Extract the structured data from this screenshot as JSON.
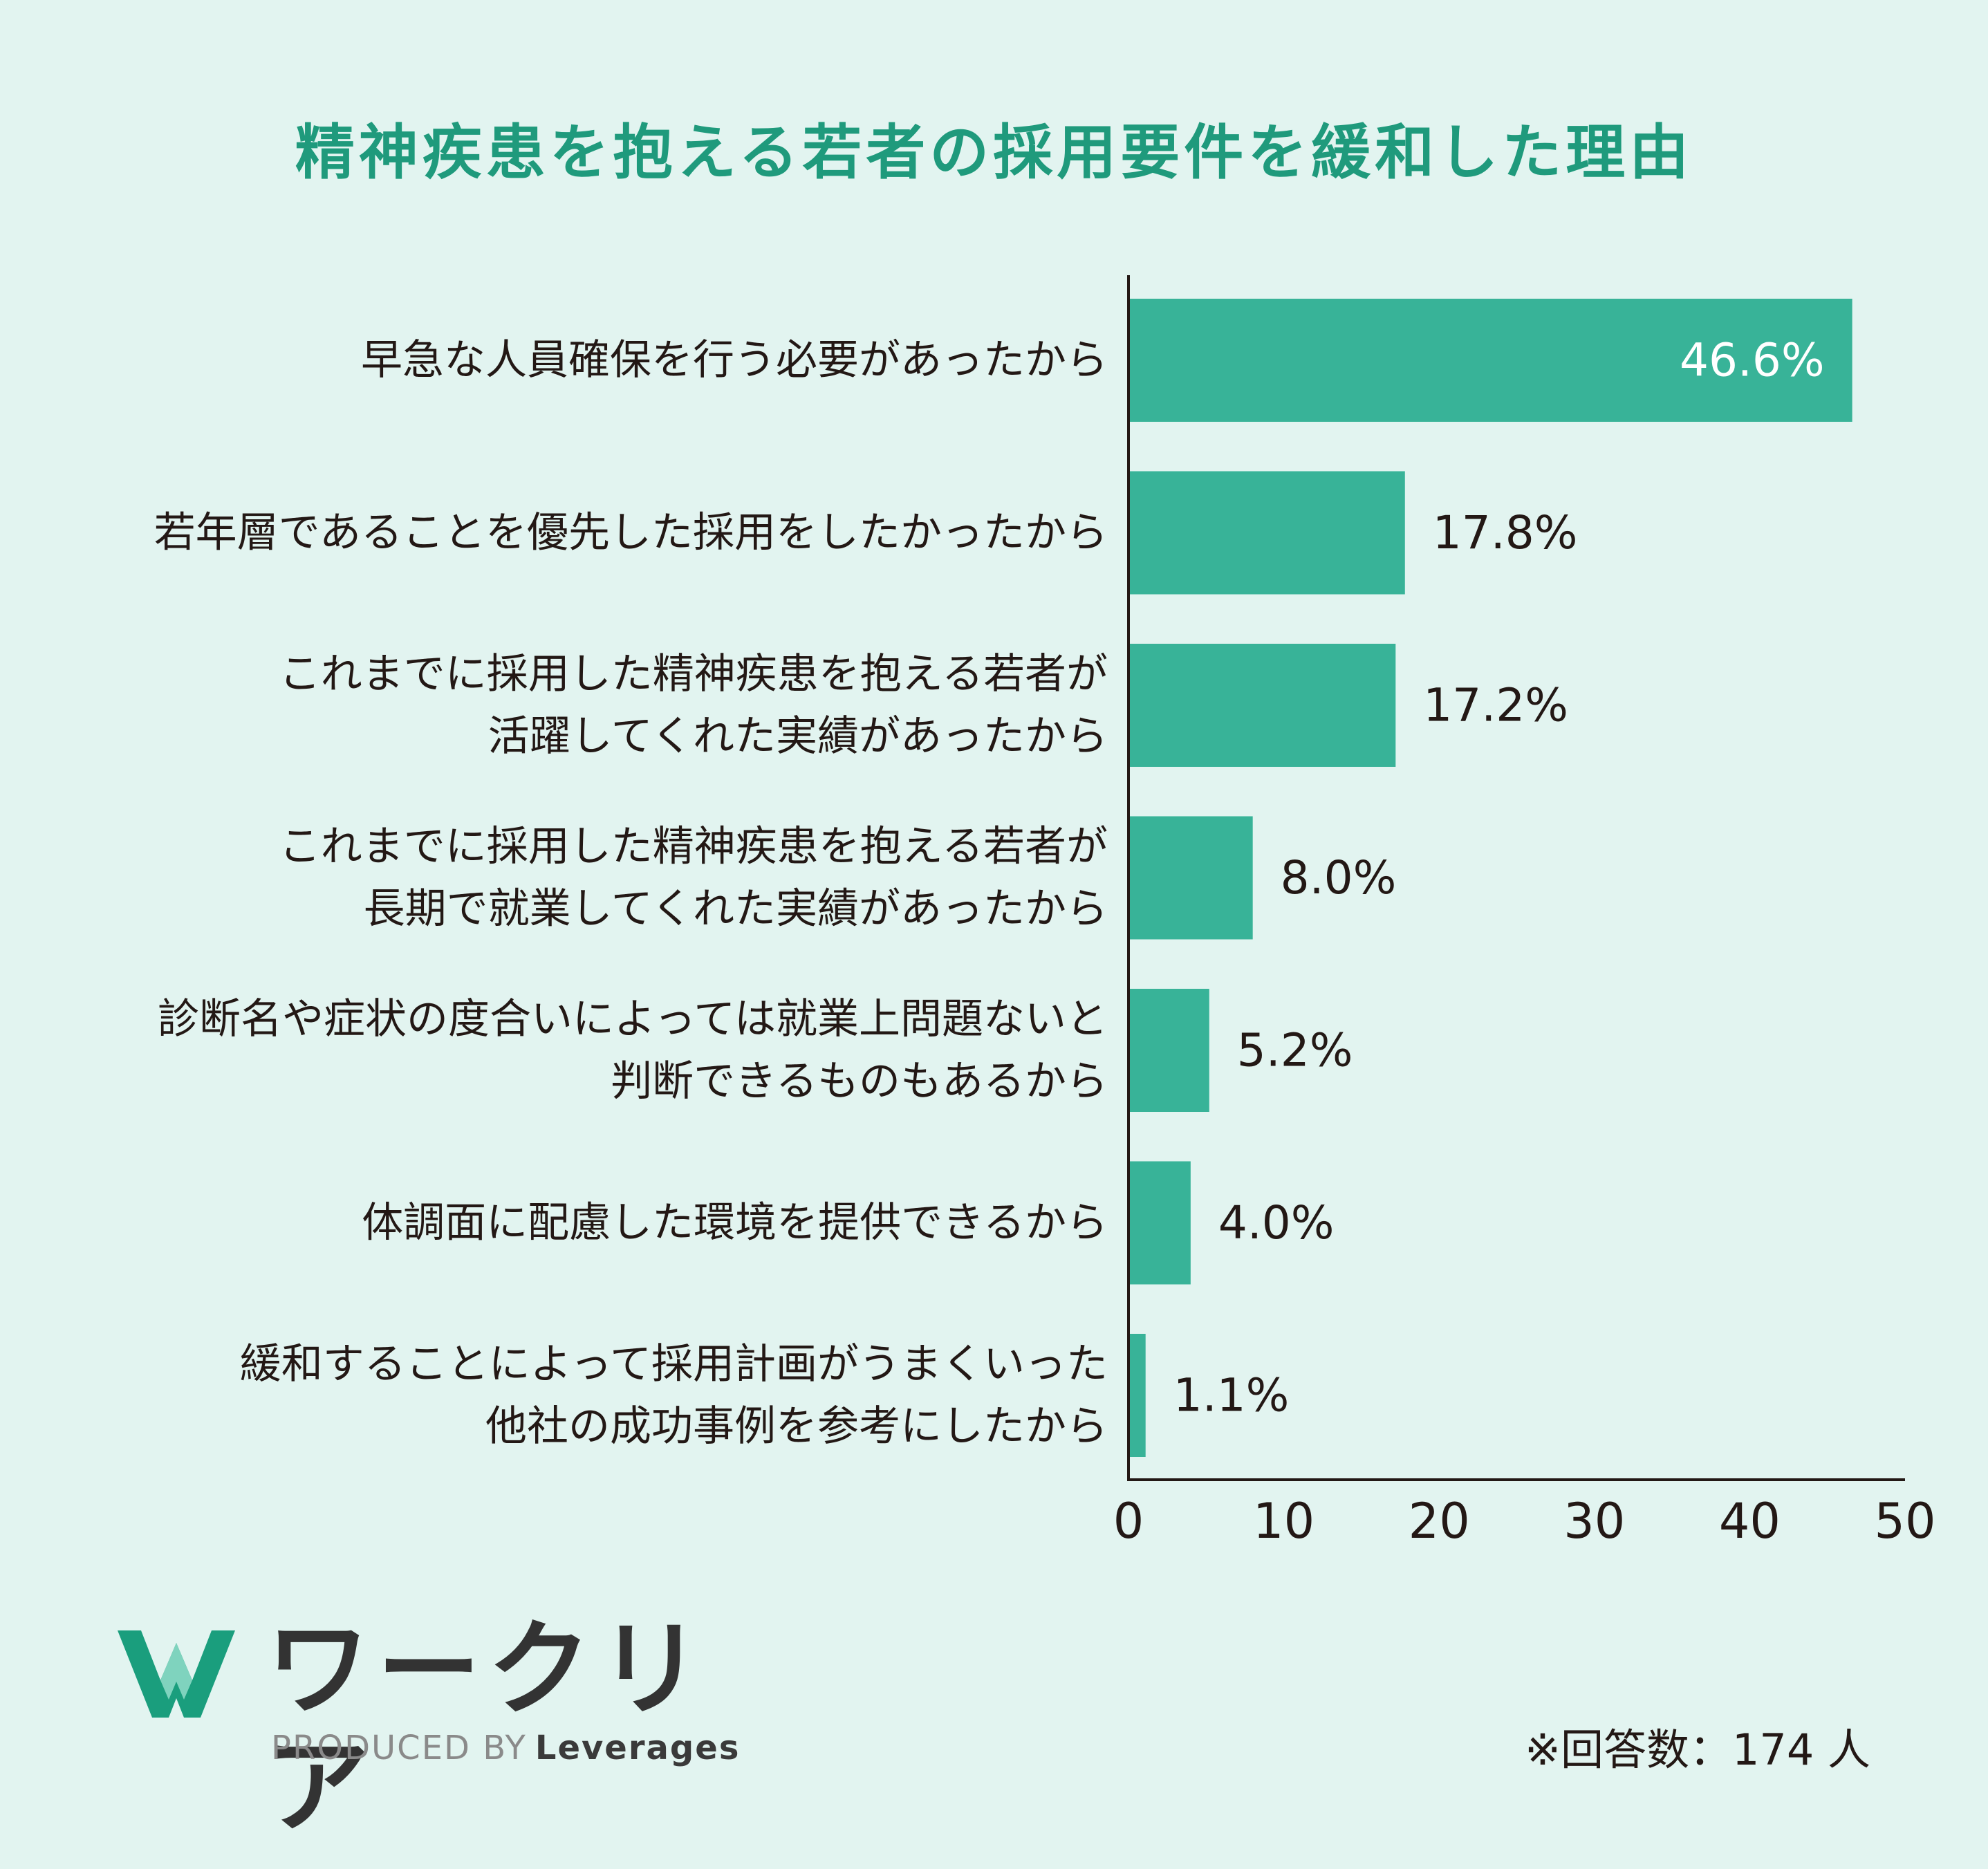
{
  "title": "精神疾患を抱える若者の採用要件を緩和した理由",
  "chart_data": {
    "type": "bar",
    "orientation": "horizontal",
    "categories": [
      [
        "早急な人員確保を行う必要があったから"
      ],
      [
        "若年層であることを優先した採用をしたかったから"
      ],
      [
        "これまでに採用した精神疾患を抱える若者が",
        "活躍してくれた実績があったから"
      ],
      [
        "これまでに採用した精神疾患を抱える若者が",
        "長期で就業してくれた実績があったから"
      ],
      [
        "診断名や症状の度合いによっては就業上問題ないと",
        "判断できるものもあるから"
      ],
      [
        "体調面に配慮した環境を提供できるから"
      ],
      [
        "緩和することによって採用計画がうまくいった",
        "他社の成功事例を参考にしたから"
      ]
    ],
    "values": [
      46.6,
      17.8,
      17.2,
      8.0,
      5.2,
      4.0,
      1.1
    ],
    "value_labels": [
      "46.6%",
      "17.8%",
      "17.2%",
      "8.0%",
      "5.2%",
      "4.0%",
      "1.1%"
    ],
    "xlim": [
      0,
      50
    ],
    "xticks": [
      "0",
      "10",
      "20",
      "30",
      "40",
      "50"
    ],
    "bar_color": "#38b398",
    "grid": false
  },
  "logo": {
    "name": "ワークリア",
    "produced_by": "PRODUCED BY",
    "brand": "Leverages",
    "icon": "workria-w-logo-icon",
    "icon_color": "#1a9e7d"
  },
  "footnote": "※回答数：174 人"
}
